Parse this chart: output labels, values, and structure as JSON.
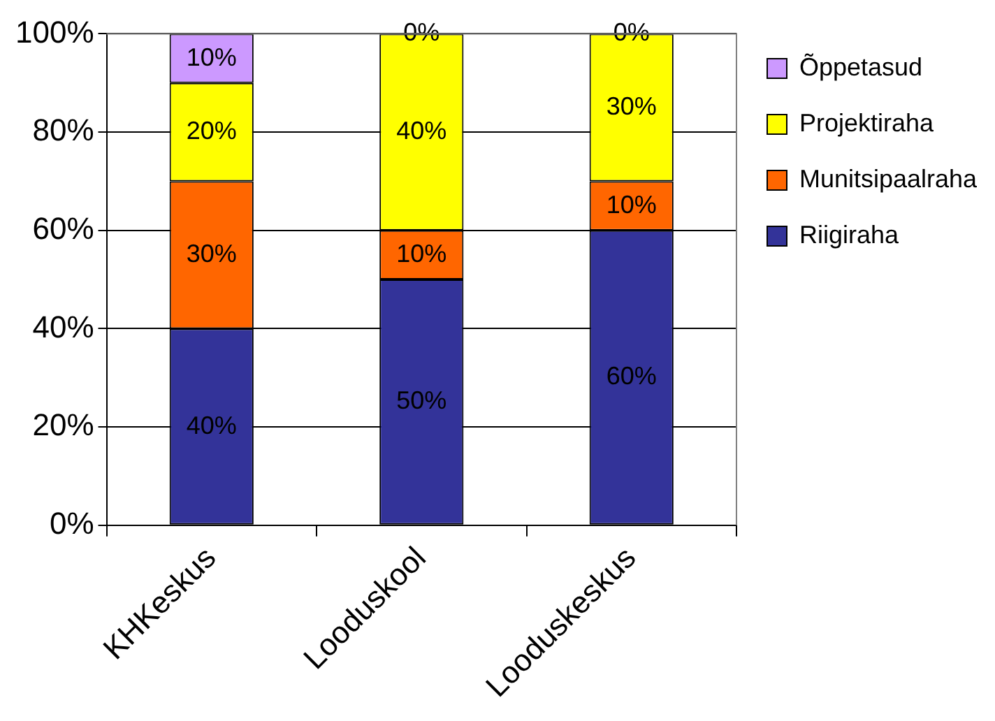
{
  "chart_data": {
    "type": "bar",
    "stacked": true,
    "categories": [
      "KHKeskus",
      "Looduskool",
      "Looduskeskus"
    ],
    "series": [
      {
        "name": "Riigiraha",
        "color": "#333399",
        "values": [
          40,
          50,
          60
        ],
        "value_labels": [
          "40%",
          "50%",
          "60%"
        ]
      },
      {
        "name": "Munitsipaalraha",
        "color": "#ff6600",
        "values": [
          30,
          10,
          10
        ],
        "value_labels": [
          "30%",
          "10%",
          "10%"
        ]
      },
      {
        "name": "Projektiraha",
        "color": "#ffff00",
        "values": [
          20,
          40,
          30
        ],
        "value_labels": [
          "20%",
          "40%",
          "30%"
        ]
      },
      {
        "name": "Õppetasud",
        "color": "#cc99ff",
        "values": [
          10,
          0,
          0
        ],
        "value_labels": [
          "10%",
          "0%",
          "0%"
        ]
      }
    ],
    "ylim": [
      0,
      100
    ],
    "yticks": [
      {
        "value": 0,
        "label": "0%"
      },
      {
        "value": 20,
        "label": "20%"
      },
      {
        "value": 40,
        "label": "40%"
      },
      {
        "value": 60,
        "label": "60%"
      },
      {
        "value": 80,
        "label": "80%"
      },
      {
        "value": 100,
        "label": "100%"
      }
    ],
    "grid": "y",
    "legend": "right"
  }
}
